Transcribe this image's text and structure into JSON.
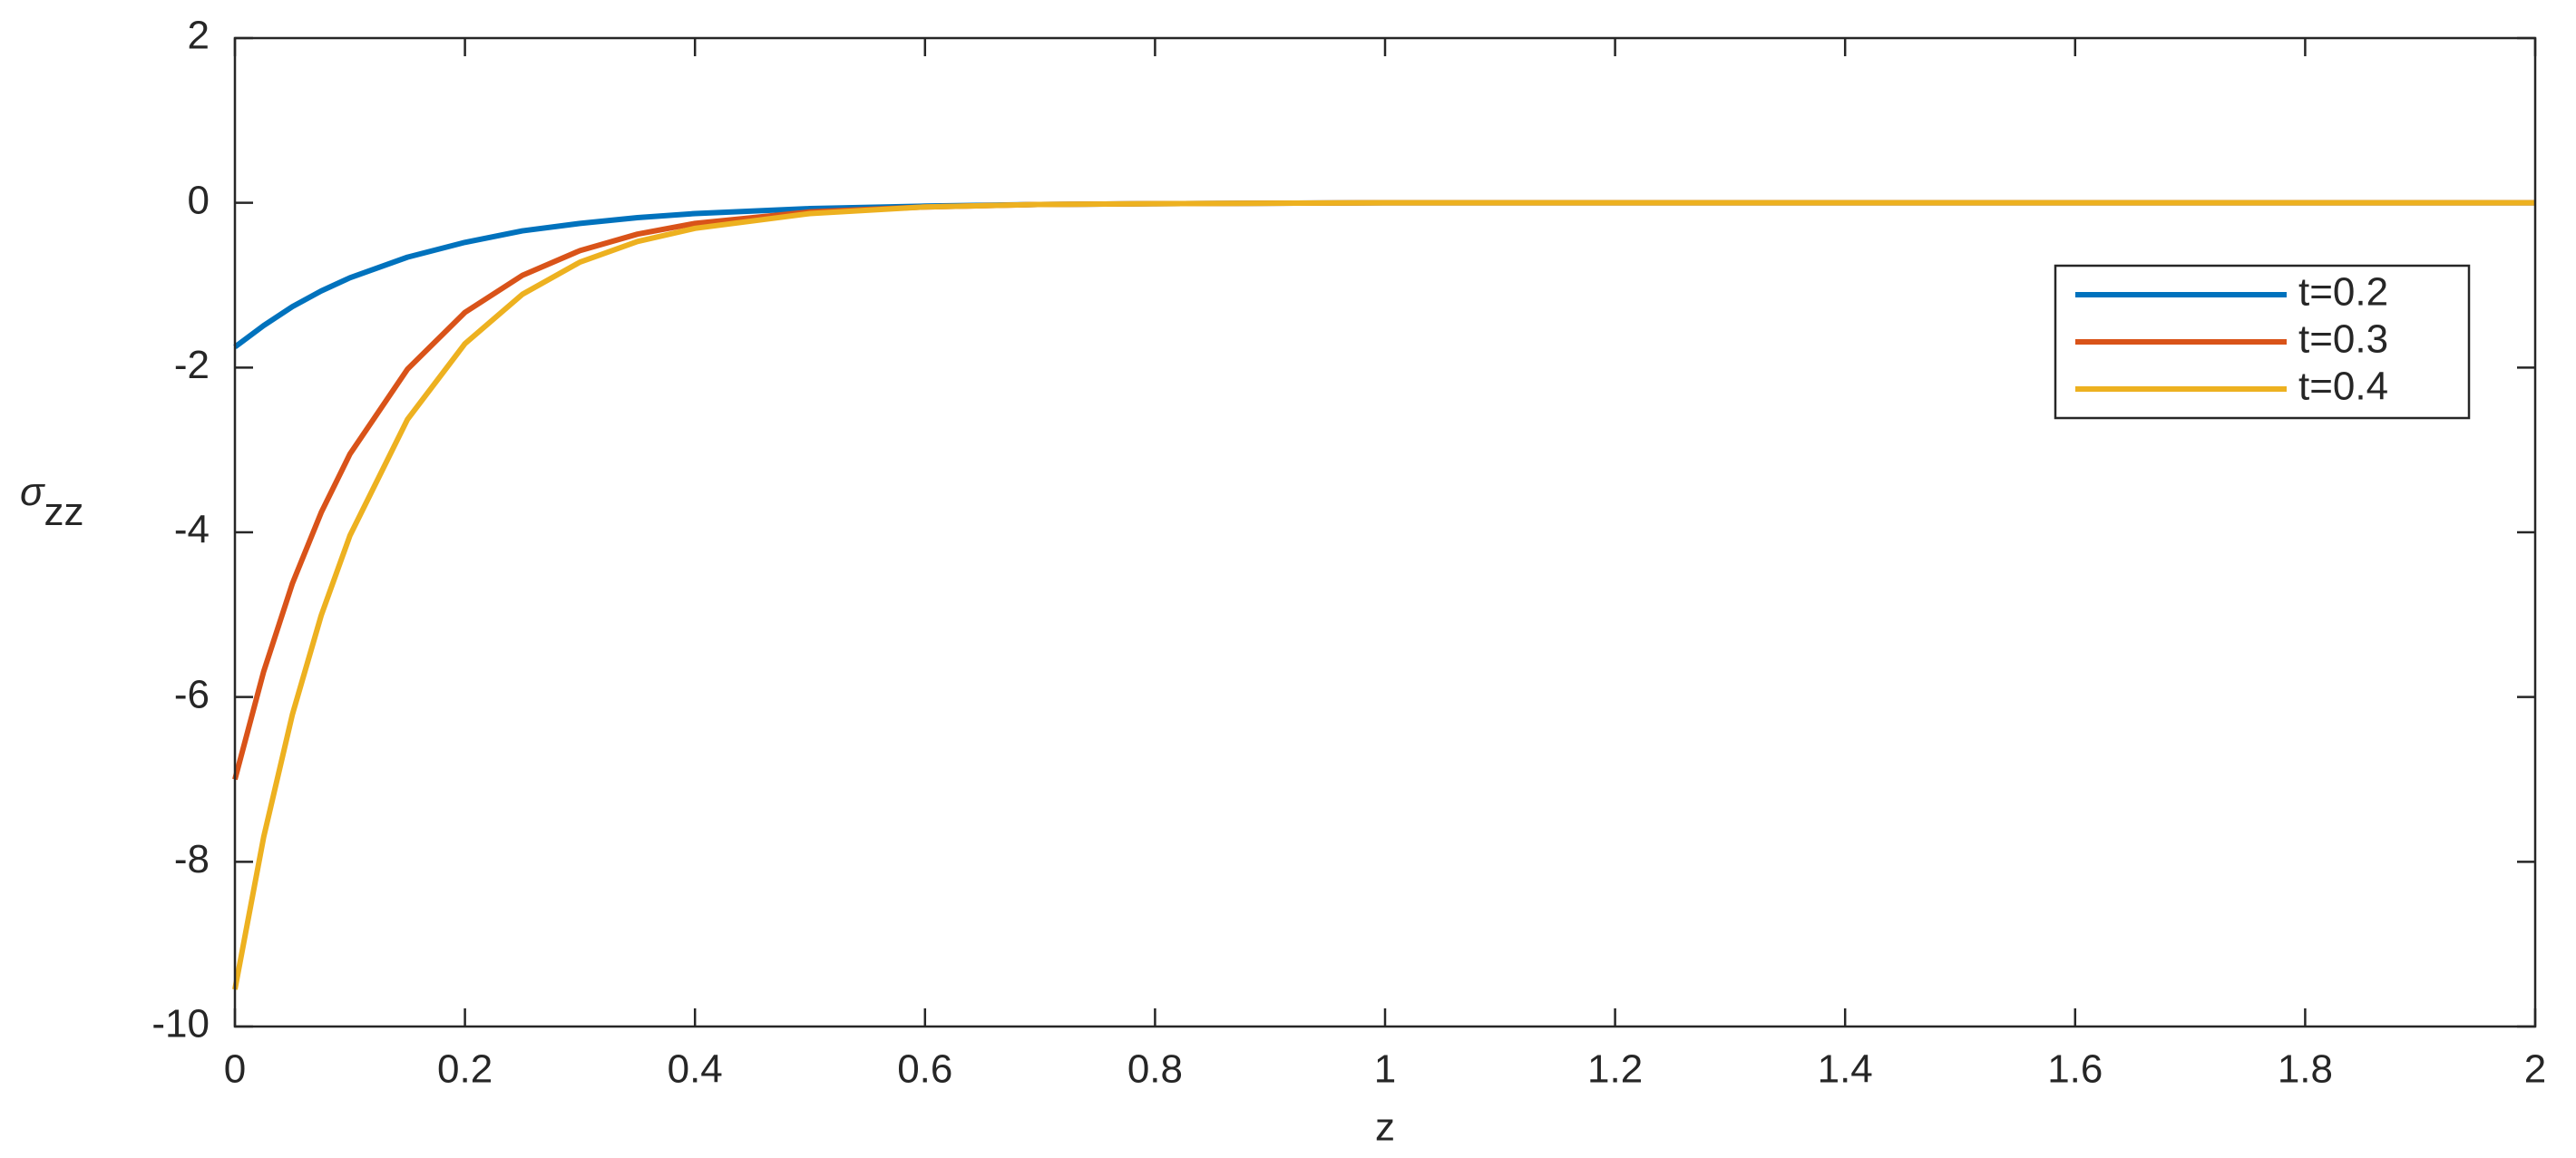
{
  "chart_data": {
    "type": "line",
    "xlabel": "z",
    "ylabel": {
      "symbol": "σ",
      "subscript": "zz"
    },
    "x": [
      0,
      0.025,
      0.05,
      0.075,
      0.1,
      0.15,
      0.2,
      0.25,
      0.3,
      0.35,
      0.4,
      0.5,
      0.6,
      0.7,
      0.8,
      1,
      1.2,
      1.5,
      2
    ],
    "series": [
      {
        "name": "t=0.2",
        "color": "#0072BD",
        "values": [
          -1.75,
          -1.49,
          -1.26,
          -1.07,
          -0.91,
          -0.66,
          -0.48,
          -0.34,
          -0.25,
          -0.18,
          -0.13,
          -0.07,
          -0.04,
          -0.02,
          -0.01,
          0,
          0,
          0,
          0
        ]
      },
      {
        "name": "t=0.3",
        "color": "#D95319",
        "values": [
          -7.0,
          -5.69,
          -4.62,
          -3.76,
          -3.05,
          -2.02,
          -1.33,
          -0.88,
          -0.58,
          -0.38,
          -0.25,
          -0.11,
          -0.05,
          -0.02,
          -0.01,
          0,
          0,
          0,
          0
        ]
      },
      {
        "name": "t=0.4",
        "color": "#EDB120",
        "values": [
          -9.55,
          -7.7,
          -6.21,
          -5.01,
          -4.04,
          -2.63,
          -1.71,
          -1.11,
          -0.72,
          -0.47,
          -0.31,
          -0.13,
          -0.05,
          -0.02,
          -0.01,
          0,
          0,
          0,
          0
        ]
      }
    ],
    "xlim": [
      0,
      2
    ],
    "xticks": [
      0,
      0.2,
      0.4,
      0.6,
      0.8,
      1,
      1.2,
      1.4,
      1.6,
      1.8,
      2
    ],
    "ylim": [
      -10,
      2
    ],
    "yticks": [
      -10,
      -8,
      -6,
      -4,
      -2,
      0,
      2
    ],
    "grid": false,
    "legend": "upper right"
  }
}
